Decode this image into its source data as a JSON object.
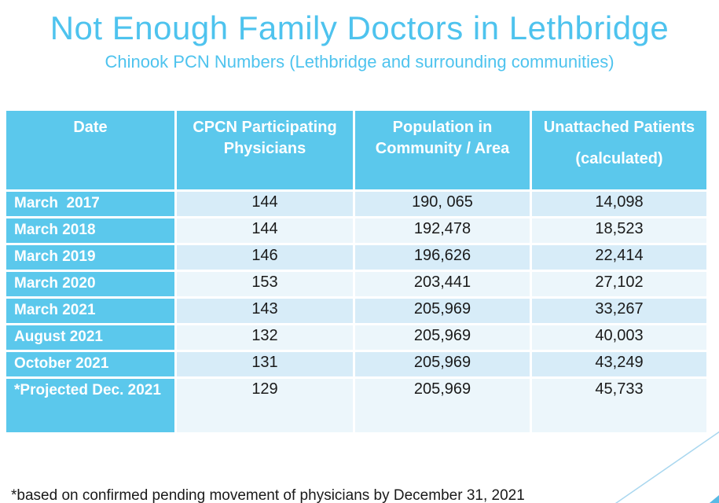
{
  "slide": {
    "title": "Not Enough Family Doctors in Lethbridge",
    "subtitle": "Chinook PCN Numbers (Lethbridge and surrounding communities)",
    "footnote": "*based on confirmed pending movement of physicians by December 31, 2021"
  },
  "table": {
    "columns": [
      {
        "label": "Date"
      },
      {
        "label": "CPCN Participating Physicians"
      },
      {
        "label": "Population in Community / Area"
      },
      {
        "label": "Unattached Patients",
        "sublabel": "(calculated)"
      }
    ],
    "rows": [
      {
        "date": "March  2017",
        "physicians": "144",
        "population": "190, 065",
        "unattached": "14,098"
      },
      {
        "date": "March 2018",
        "physicians": "144",
        "population": "192,478",
        "unattached": "18,523"
      },
      {
        "date": "March 2019",
        "physicians": "146",
        "population": "196,626",
        "unattached": "22,414"
      },
      {
        "date": "March 2020",
        "physicians": "153",
        "population": "203,441",
        "unattached": "27,102"
      },
      {
        "date": "March 2021",
        "physicians": "143",
        "population": "205,969",
        "unattached": "33,267"
      },
      {
        "date": "August 2021",
        "physicians": "132",
        "population": "205,969",
        "unattached": "40,003"
      },
      {
        "date": "October 2021",
        "physicians": "131",
        "population": "205,969",
        "unattached": "43,249"
      },
      {
        "date": "*Projected Dec. 2021",
        "physicians": "129",
        "population": "205,969",
        "unattached": "45,733"
      }
    ]
  },
  "colors": {
    "accent_blue": "#5BC8EC",
    "title_blue": "#4EC3EE",
    "row_light_blue": "#D7ECF8",
    "row_pale_blue": "#ECF6FB",
    "header_text": "#FFFFFF",
    "body_text": "#1A1A1A",
    "triangle_blue": "#58BAE5",
    "line_blue": "#A9D7EF"
  }
}
